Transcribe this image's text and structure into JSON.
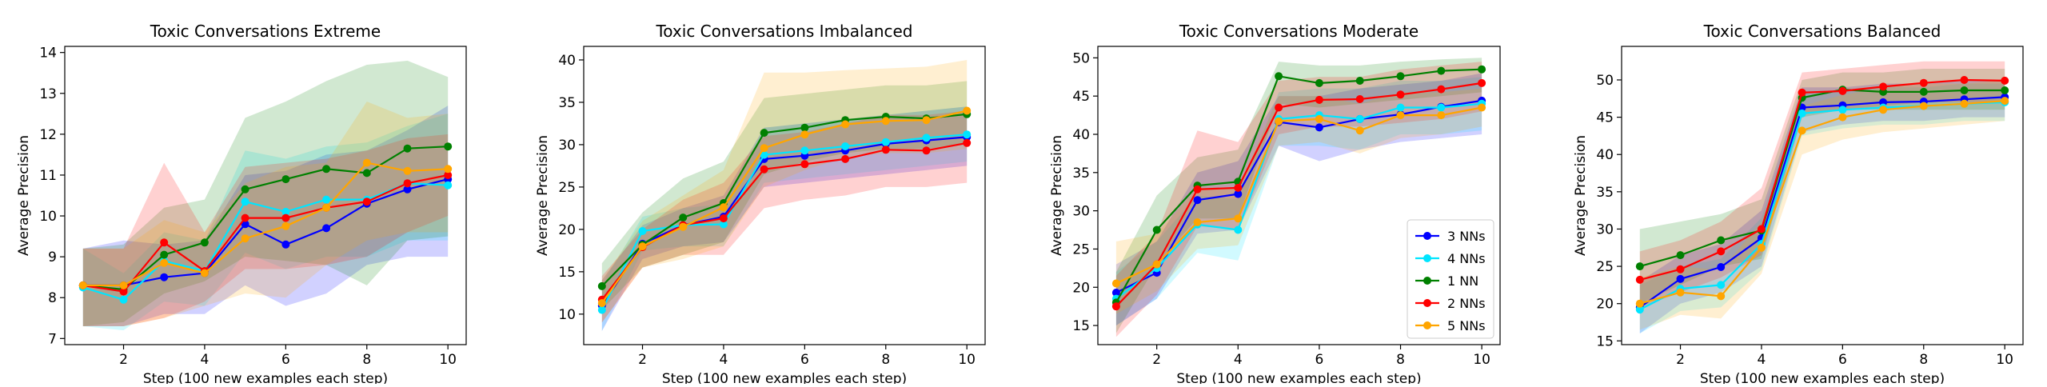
{
  "chart_data": [
    {
      "type": "line",
      "title": "Toxic Conversations Extreme",
      "xlabel": "Step (100 new examples each step)",
      "ylabel": "Average Precision",
      "xlim": [
        0.55,
        10.45
      ],
      "ylim": [
        6.85,
        14.15
      ],
      "xticks": [
        2,
        4,
        6,
        8,
        10
      ],
      "yticks": [
        7,
        8,
        9,
        10,
        11,
        12,
        13,
        14
      ],
      "grid": false,
      "x": [
        1,
        2,
        3,
        4,
        5,
        6,
        7,
        8,
        9,
        10
      ],
      "series": [
        {
          "name": "3 NNs",
          "color": "#0000ff",
          "values": [
            8.3,
            8.3,
            8.5,
            8.6,
            9.8,
            9.3,
            9.7,
            10.3,
            10.65,
            10.9
          ],
          "lower": [
            7.3,
            7.3,
            7.6,
            7.6,
            8.3,
            7.8,
            8.1,
            8.8,
            9.0,
            9.0
          ],
          "upper": [
            9.2,
            9.4,
            9.3,
            9.4,
            11.0,
            11.1,
            11.5,
            11.6,
            12.1,
            12.7
          ]
        },
        {
          "name": "4 NNs",
          "color": "#00e5ff",
          "values": [
            8.25,
            7.95,
            8.9,
            8.65,
            10.35,
            10.1,
            10.4,
            10.4,
            10.8,
            10.75
          ],
          "lower": [
            7.3,
            7.2,
            7.9,
            7.8,
            9.1,
            8.7,
            9.0,
            9.0,
            9.4,
            9.4
          ],
          "upper": [
            9.2,
            8.6,
            9.6,
            9.4,
            11.6,
            11.4,
            11.7,
            11.8,
            12.2,
            12.5
          ]
        },
        {
          "name": "1 NN",
          "color": "#008000",
          "values": [
            8.3,
            8.2,
            9.05,
            9.35,
            10.65,
            10.9,
            11.15,
            11.05,
            11.65,
            11.7
          ],
          "lower": [
            7.3,
            7.4,
            8.1,
            8.4,
            9.0,
            8.9,
            8.8,
            8.3,
            9.4,
            9.5
          ],
          "upper": [
            9.2,
            9.3,
            10.2,
            10.4,
            12.4,
            12.8,
            13.3,
            13.7,
            13.8,
            13.4
          ]
        },
        {
          "name": "2 NNs",
          "color": "#ff0000",
          "values": [
            8.3,
            8.15,
            9.35,
            8.65,
            9.95,
            9.95,
            10.2,
            10.35,
            10.8,
            11.0
          ],
          "lower": [
            7.3,
            7.3,
            7.5,
            7.9,
            8.7,
            8.7,
            8.8,
            9.0,
            9.6,
            10.0
          ],
          "upper": [
            9.2,
            9.2,
            11.3,
            9.6,
            11.2,
            11.3,
            11.4,
            11.6,
            11.9,
            12.0
          ]
        },
        {
          "name": "5 NNs",
          "color": "#ffa500",
          "values": [
            8.3,
            8.3,
            8.85,
            8.6,
            9.45,
            9.75,
            10.2,
            11.3,
            11.1,
            11.15
          ],
          "lower": [
            7.3,
            7.3,
            7.5,
            7.8,
            8.1,
            8.0,
            8.8,
            9.4,
            9.6,
            9.6
          ],
          "upper": [
            9.2,
            9.2,
            9.9,
            9.6,
            10.8,
            11.2,
            11.3,
            12.8,
            12.4,
            12.5
          ]
        }
      ]
    },
    {
      "type": "line",
      "title": "Toxic Conversations Imbalanced",
      "xlabel": "Step (100 new examples each step)",
      "ylabel": "Average Precision",
      "xlim": [
        0.55,
        10.45
      ],
      "ylim": [
        6.4,
        41.6
      ],
      "xticks": [
        2,
        4,
        6,
        8,
        10
      ],
      "yticks": [
        10,
        15,
        20,
        25,
        30,
        35,
        40
      ],
      "grid": false,
      "x": [
        1,
        2,
        3,
        4,
        5,
        6,
        7,
        8,
        9,
        10
      ],
      "series": [
        {
          "name": "3 NNs",
          "color": "#0000ff",
          "values": [
            11.0,
            18.3,
            20.5,
            21.5,
            28.3,
            28.7,
            29.3,
            30.1,
            30.5,
            30.9
          ],
          "lower": [
            8.0,
            16.5,
            18.0,
            18.5,
            25.0,
            25.5,
            26.0,
            26.5,
            27.0,
            27.5
          ],
          "upper": [
            14.0,
            20.5,
            22.5,
            24.0,
            32.0,
            32.5,
            33.0,
            33.5,
            34.0,
            34.5
          ]
        },
        {
          "name": "4 NNs",
          "color": "#00e5ff",
          "values": [
            10.5,
            19.8,
            20.5,
            20.6,
            28.8,
            29.3,
            29.8,
            30.3,
            30.8,
            31.2
          ],
          "lower": [
            8.0,
            17.5,
            18.0,
            18.0,
            25.5,
            26.0,
            26.5,
            27.0,
            27.5,
            28.0
          ],
          "upper": [
            13.5,
            21.5,
            22.5,
            23.0,
            32.0,
            32.5,
            33.0,
            33.5,
            34.0,
            34.5
          ]
        },
        {
          "name": "1 NN",
          "color": "#008000",
          "values": [
            13.3,
            18.2,
            21.4,
            23.1,
            31.4,
            32.0,
            32.9,
            33.3,
            33.1,
            33.6
          ],
          "lower": [
            10.5,
            15.5,
            17.0,
            18.5,
            26.5,
            28.0,
            29.0,
            29.5,
            29.5,
            30.0
          ],
          "upper": [
            16.0,
            22.0,
            26.0,
            28.0,
            35.5,
            36.0,
            36.5,
            37.0,
            37.0,
            37.5
          ]
        },
        {
          "name": "2 NNs",
          "color": "#ff0000",
          "values": [
            11.7,
            17.9,
            20.5,
            21.3,
            27.1,
            27.7,
            28.3,
            29.4,
            29.3,
            30.2
          ],
          "lower": [
            9.0,
            15.5,
            17.0,
            17.0,
            22.5,
            23.5,
            24.0,
            25.0,
            25.0,
            25.5
          ],
          "upper": [
            14.5,
            20.0,
            23.5,
            25.5,
            31.0,
            31.5,
            32.5,
            33.5,
            33.5,
            34.0
          ]
        },
        {
          "name": "5 NNs",
          "color": "#ffa500",
          "values": [
            11.3,
            18.0,
            20.3,
            22.6,
            29.6,
            31.2,
            32.4,
            32.8,
            32.9,
            34.0
          ],
          "lower": [
            9.0,
            15.5,
            16.5,
            18.0,
            25.0,
            27.0,
            28.5,
            29.0,
            29.0,
            29.5
          ],
          "upper": [
            14.0,
            21.0,
            24.0,
            27.0,
            38.5,
            38.5,
            38.8,
            39.0,
            39.2,
            40.0
          ]
        }
      ]
    },
    {
      "type": "line",
      "title": "Toxic Conversations Moderate",
      "xlabel": "Step (100 new examples each step)",
      "ylabel": "Average Precision",
      "xlim": [
        0.55,
        10.45
      ],
      "ylim": [
        12.5,
        51.5
      ],
      "xticks": [
        2,
        4,
        6,
        8,
        10
      ],
      "yticks": [
        15,
        20,
        25,
        30,
        35,
        40,
        45,
        50
      ],
      "grid": false,
      "x": [
        1,
        2,
        3,
        4,
        5,
        6,
        7,
        8,
        9,
        10
      ],
      "series": [
        {
          "name": "3 NNs",
          "color": "#0000ff",
          "values": [
            19.3,
            21.9,
            31.4,
            32.2,
            41.6,
            40.9,
            42.0,
            42.6,
            43.6,
            44.4
          ],
          "lower": [
            15.0,
            18.5,
            27.0,
            27.5,
            38.5,
            36.5,
            38.0,
            39.0,
            39.5,
            40.0
          ],
          "upper": [
            23.0,
            26.0,
            35.0,
            36.5,
            45.0,
            45.0,
            46.0,
            46.5,
            47.0,
            48.0
          ]
        },
        {
          "name": "4 NNs",
          "color": "#00e5ff",
          "values": [
            18.5,
            22.5,
            28.2,
            27.5,
            42.0,
            42.5,
            42.0,
            43.5,
            43.5,
            44.0
          ],
          "lower": [
            15.0,
            18.5,
            24.5,
            23.5,
            38.5,
            38.5,
            38.0,
            40.0,
            40.0,
            40.5
          ],
          "upper": [
            22.0,
            26.0,
            32.0,
            31.5,
            45.5,
            46.0,
            46.0,
            47.0,
            47.0,
            47.5
          ]
        },
        {
          "name": "1 NN",
          "color": "#008000",
          "values": [
            18.0,
            27.5,
            33.3,
            33.8,
            47.6,
            46.7,
            47.0,
            47.6,
            48.3,
            48.5
          ],
          "lower": [
            14.0,
            23.0,
            29.0,
            29.0,
            44.0,
            43.5,
            44.0,
            44.5,
            45.0,
            45.5
          ],
          "upper": [
            22.0,
            32.0,
            37.0,
            38.0,
            49.5,
            49.0,
            49.0,
            49.5,
            49.8,
            50.0
          ]
        },
        {
          "name": "2 NNs",
          "color": "#ff0000",
          "values": [
            17.5,
            23.0,
            32.8,
            33.0,
            43.5,
            44.5,
            44.6,
            45.2,
            45.9,
            46.7
          ],
          "lower": [
            13.5,
            19.0,
            28.0,
            27.5,
            40.0,
            41.0,
            41.0,
            41.5,
            42.0,
            43.0
          ],
          "upper": [
            21.5,
            27.0,
            40.5,
            39.0,
            47.0,
            47.5,
            47.5,
            48.5,
            49.0,
            49.5
          ]
        },
        {
          "name": "5 NNs",
          "color": "#ffa500",
          "values": [
            20.5,
            23.0,
            28.5,
            29.0,
            41.7,
            42.0,
            40.5,
            42.5,
            42.5,
            43.5
          ],
          "lower": [
            16.5,
            19.5,
            25.0,
            25.5,
            38.5,
            39.0,
            37.5,
            39.5,
            40.0,
            41.0
          ],
          "upper": [
            26.0,
            27.0,
            33.0,
            33.0,
            45.0,
            45.0,
            44.0,
            45.5,
            45.5,
            46.0
          ]
        }
      ],
      "legend_position": "lower-right"
    },
    {
      "type": "line",
      "title": "Toxic Conversations Balanced",
      "xlabel": "Step (100 new examples each step)",
      "ylabel": "Average Precision",
      "xlim": [
        0.55,
        10.45
      ],
      "ylim": [
        14.5,
        54.5
      ],
      "xticks": [
        2,
        4,
        6,
        8,
        10
      ],
      "yticks": [
        15,
        20,
        25,
        30,
        35,
        40,
        45,
        50
      ],
      "grid": false,
      "x": [
        1,
        2,
        3,
        4,
        5,
        6,
        7,
        8,
        9,
        10
      ],
      "series": [
        {
          "name": "3 NNs",
          "color": "#0000ff",
          "values": [
            19.5,
            23.3,
            24.9,
            28.8,
            46.3,
            46.6,
            47.0,
            47.1,
            47.4,
            47.7
          ],
          "lower": [
            16.0,
            20.0,
            21.5,
            25.0,
            43.0,
            44.0,
            44.5,
            44.5,
            45.0,
            45.0
          ],
          "upper": [
            23.0,
            26.5,
            28.0,
            32.5,
            49.0,
            49.0,
            49.5,
            49.5,
            50.0,
            50.0
          ]
        },
        {
          "name": "4 NNs",
          "color": "#00e5ff",
          "values": [
            19.2,
            22.0,
            22.5,
            28.0,
            45.5,
            46.0,
            46.3,
            46.5,
            46.8,
            47.0
          ],
          "lower": [
            16.0,
            19.0,
            19.5,
            24.5,
            42.5,
            43.5,
            44.0,
            44.0,
            44.5,
            44.5
          ],
          "upper": [
            22.5,
            25.0,
            26.0,
            31.5,
            48.5,
            48.5,
            49.0,
            49.0,
            49.5,
            49.5
          ]
        },
        {
          "name": "1 NN",
          "color": "#008000",
          "values": [
            25.0,
            26.5,
            28.5,
            29.8,
            47.6,
            48.7,
            48.4,
            48.4,
            48.6,
            48.6
          ],
          "lower": [
            20.0,
            22.5,
            25.0,
            26.0,
            45.0,
            46.0,
            46.0,
            46.0,
            46.0,
            46.0
          ],
          "upper": [
            30.0,
            31.0,
            32.0,
            34.0,
            50.0,
            51.0,
            51.0,
            51.5,
            51.5,
            51.5
          ]
        },
        {
          "name": "2 NNs",
          "color": "#ff0000",
          "values": [
            23.2,
            24.6,
            27.0,
            30.0,
            48.3,
            48.5,
            49.1,
            49.6,
            50.0,
            49.9
          ],
          "lower": [
            19.5,
            21.5,
            23.5,
            26.5,
            45.5,
            46.0,
            46.5,
            47.0,
            47.0,
            47.0
          ],
          "upper": [
            27.0,
            28.5,
            31.0,
            35.5,
            51.0,
            51.5,
            52.0,
            52.5,
            52.5,
            52.5
          ]
        },
        {
          "name": "5 NNs",
          "color": "#ffa500",
          "values": [
            20.0,
            21.5,
            21.0,
            27.5,
            43.2,
            45.0,
            46.0,
            46.5,
            46.8,
            47.2
          ],
          "lower": [
            16.5,
            18.5,
            18.0,
            24.0,
            40.0,
            42.0,
            43.0,
            43.5,
            44.0,
            44.5
          ],
          "upper": [
            23.5,
            25.0,
            24.5,
            31.0,
            46.5,
            48.0,
            49.0,
            49.5,
            49.5,
            50.0
          ]
        }
      ]
    }
  ]
}
